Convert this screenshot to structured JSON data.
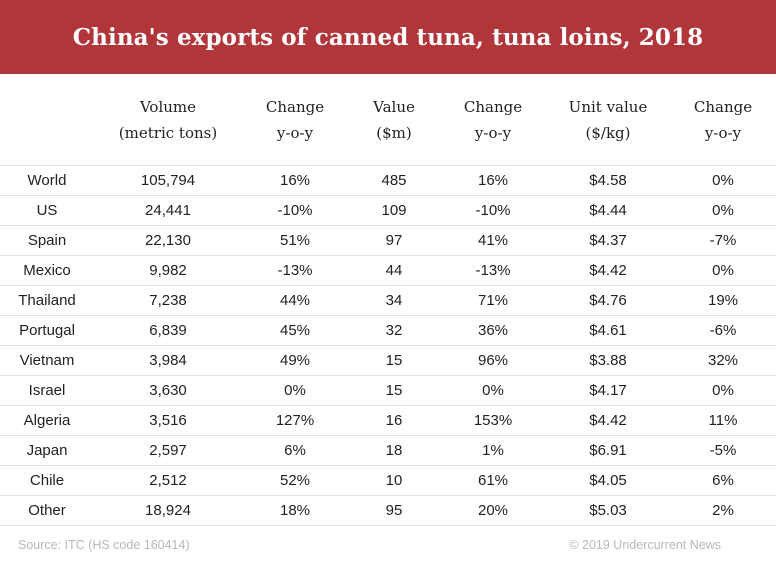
{
  "chart_data": {
    "type": "table",
    "title": "China's exports of canned tuna, tuna loins, 2018",
    "columns": [
      {
        "line1": "",
        "line2": ""
      },
      {
        "line1": "Volume",
        "line2": "(metric tons)"
      },
      {
        "line1": "Change",
        "line2": "y-o-y"
      },
      {
        "line1": "Value",
        "line2": "($m)"
      },
      {
        "line1": "Change",
        "line2": "y-o-y"
      },
      {
        "line1": "Unit value",
        "line2": "($/kg)"
      },
      {
        "line1": "Change",
        "line2": "y-o-y"
      }
    ],
    "rows": [
      [
        "World",
        "105,794",
        "16%",
        "485",
        "16%",
        "$4.58",
        "0%"
      ],
      [
        "US",
        "24,441",
        "-10%",
        "109",
        "-10%",
        "$4.44",
        "0%"
      ],
      [
        "Spain",
        "22,130",
        "51%",
        "97",
        "41%",
        "$4.37",
        "-7%"
      ],
      [
        "Mexico",
        "9,982",
        "-13%",
        "44",
        "-13%",
        "$4.42",
        "0%"
      ],
      [
        "Thailand",
        "7,238",
        "44%",
        "34",
        "71%",
        "$4.76",
        "19%"
      ],
      [
        "Portugal",
        "6,839",
        "45%",
        "32",
        "36%",
        "$4.61",
        "-6%"
      ],
      [
        "Vietnam",
        "3,984",
        "49%",
        "15",
        "96%",
        "$3.88",
        "32%"
      ],
      [
        "Israel",
        "3,630",
        "0%",
        "15",
        "0%",
        "$4.17",
        "0%"
      ],
      [
        "Algeria",
        "3,516",
        "127%",
        "16",
        "153%",
        "$4.42",
        "11%"
      ],
      [
        "Japan",
        "2,597",
        "6%",
        "18",
        "1%",
        "$6.91",
        "-5%"
      ],
      [
        "Chile",
        "2,512",
        "52%",
        "10",
        "61%",
        "$4.05",
        "6%"
      ],
      [
        "Other",
        "18,924",
        "18%",
        "95",
        "20%",
        "$5.03",
        "2%"
      ]
    ],
    "source": "Source: ITC (HS code 160414)",
    "copyright": "© 2019 Undercurrent News"
  },
  "colors": {
    "banner": "#b0363a",
    "title_text": "#ffffff",
    "row_rule": "#e3e3e3",
    "footer_text": "#b8b8b8"
  }
}
